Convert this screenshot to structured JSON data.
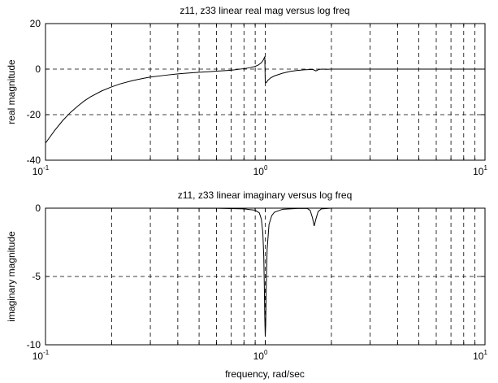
{
  "chart_data": [
    {
      "type": "line",
      "title": "z11, z33 linear real mag versus log freq",
      "xlabel": "",
      "ylabel": "real magnitude",
      "xscale": "log",
      "xlim": [
        0.1,
        10
      ],
      "ylim": [
        -40,
        20
      ],
      "xticks": [
        {
          "base": "10",
          "exp": "-1"
        },
        {
          "base": "10",
          "exp": "0"
        },
        {
          "base": "10",
          "exp": "1"
        }
      ],
      "yticks": [
        "20",
        "0",
        "-20",
        "-40"
      ],
      "grid": true,
      "series": [
        {
          "x": [
            0.1,
            0.11,
            0.12,
            0.13,
            0.14,
            0.15,
            0.16,
            0.18,
            0.2,
            0.22,
            0.25,
            0.28,
            0.3,
            0.35,
            0.4,
            0.45,
            0.5,
            0.6,
            0.7,
            0.8,
            0.85,
            0.9,
            0.93,
            0.96,
            0.98,
            0.995,
            1.0,
            1.01,
            1.03,
            1.06,
            1.1,
            1.2,
            1.3,
            1.4,
            1.5,
            1.6,
            1.65,
            1.7,
            1.75,
            1.8,
            1.9,
            2.0,
            2.5,
            3,
            4,
            5,
            6,
            7,
            8,
            10
          ],
          "y": [
            -32.5,
            -27.0,
            -22.5,
            -19.0,
            -16.3,
            -14.0,
            -12.2,
            -9.6,
            -7.8,
            -6.4,
            -5.0,
            -4.0,
            -3.5,
            -2.7,
            -2.1,
            -1.7,
            -1.4,
            -0.9,
            -0.5,
            0.2,
            0.6,
            1.2,
            1.8,
            2.8,
            4.0,
            5.5,
            -5.5,
            -6.0,
            -4.8,
            -3.8,
            -3.0,
            -1.8,
            -1.0,
            -0.6,
            -0.3,
            -0.2,
            -0.2,
            -0.8,
            -0.2,
            0.0,
            -0.1,
            0.0,
            0.0,
            0.0,
            0.0,
            0.0,
            0.0,
            0.0,
            0.0,
            0.0
          ]
        }
      ]
    },
    {
      "type": "line",
      "title": "z11, z33 linear imaginary versus log freq",
      "xlabel": "frequency, rad/sec",
      "ylabel": "imaginary magnitude",
      "xscale": "log",
      "xlim": [
        0.1,
        10
      ],
      "ylim": [
        -10,
        0
      ],
      "xticks": [
        {
          "base": "10",
          "exp": "-1"
        },
        {
          "base": "10",
          "exp": "0"
        },
        {
          "base": "10",
          "exp": "1"
        }
      ],
      "yticks": [
        "0",
        "-5",
        "-10"
      ],
      "grid": true,
      "series": [
        {
          "x": [
            0.1,
            0.3,
            0.6,
            0.8,
            0.9,
            0.94,
            0.96,
            0.975,
            0.985,
            0.99,
            0.995,
            1.0,
            1.005,
            1.01,
            1.02,
            1.04,
            1.07,
            1.1,
            1.2,
            1.4,
            1.55,
            1.6,
            1.64,
            1.67,
            1.7,
            1.74,
            1.8,
            2.0,
            3,
            5,
            10
          ],
          "y": [
            0,
            0,
            -0.01,
            -0.05,
            -0.15,
            -0.35,
            -0.8,
            -1.8,
            -3.6,
            -5.6,
            -8.0,
            -9.4,
            -8.5,
            -6.0,
            -3.0,
            -1.2,
            -0.55,
            -0.3,
            -0.08,
            -0.02,
            -0.02,
            -0.15,
            -0.7,
            -1.3,
            -0.8,
            -0.25,
            -0.05,
            0,
            0,
            0,
            0
          ]
        }
      ]
    }
  ]
}
